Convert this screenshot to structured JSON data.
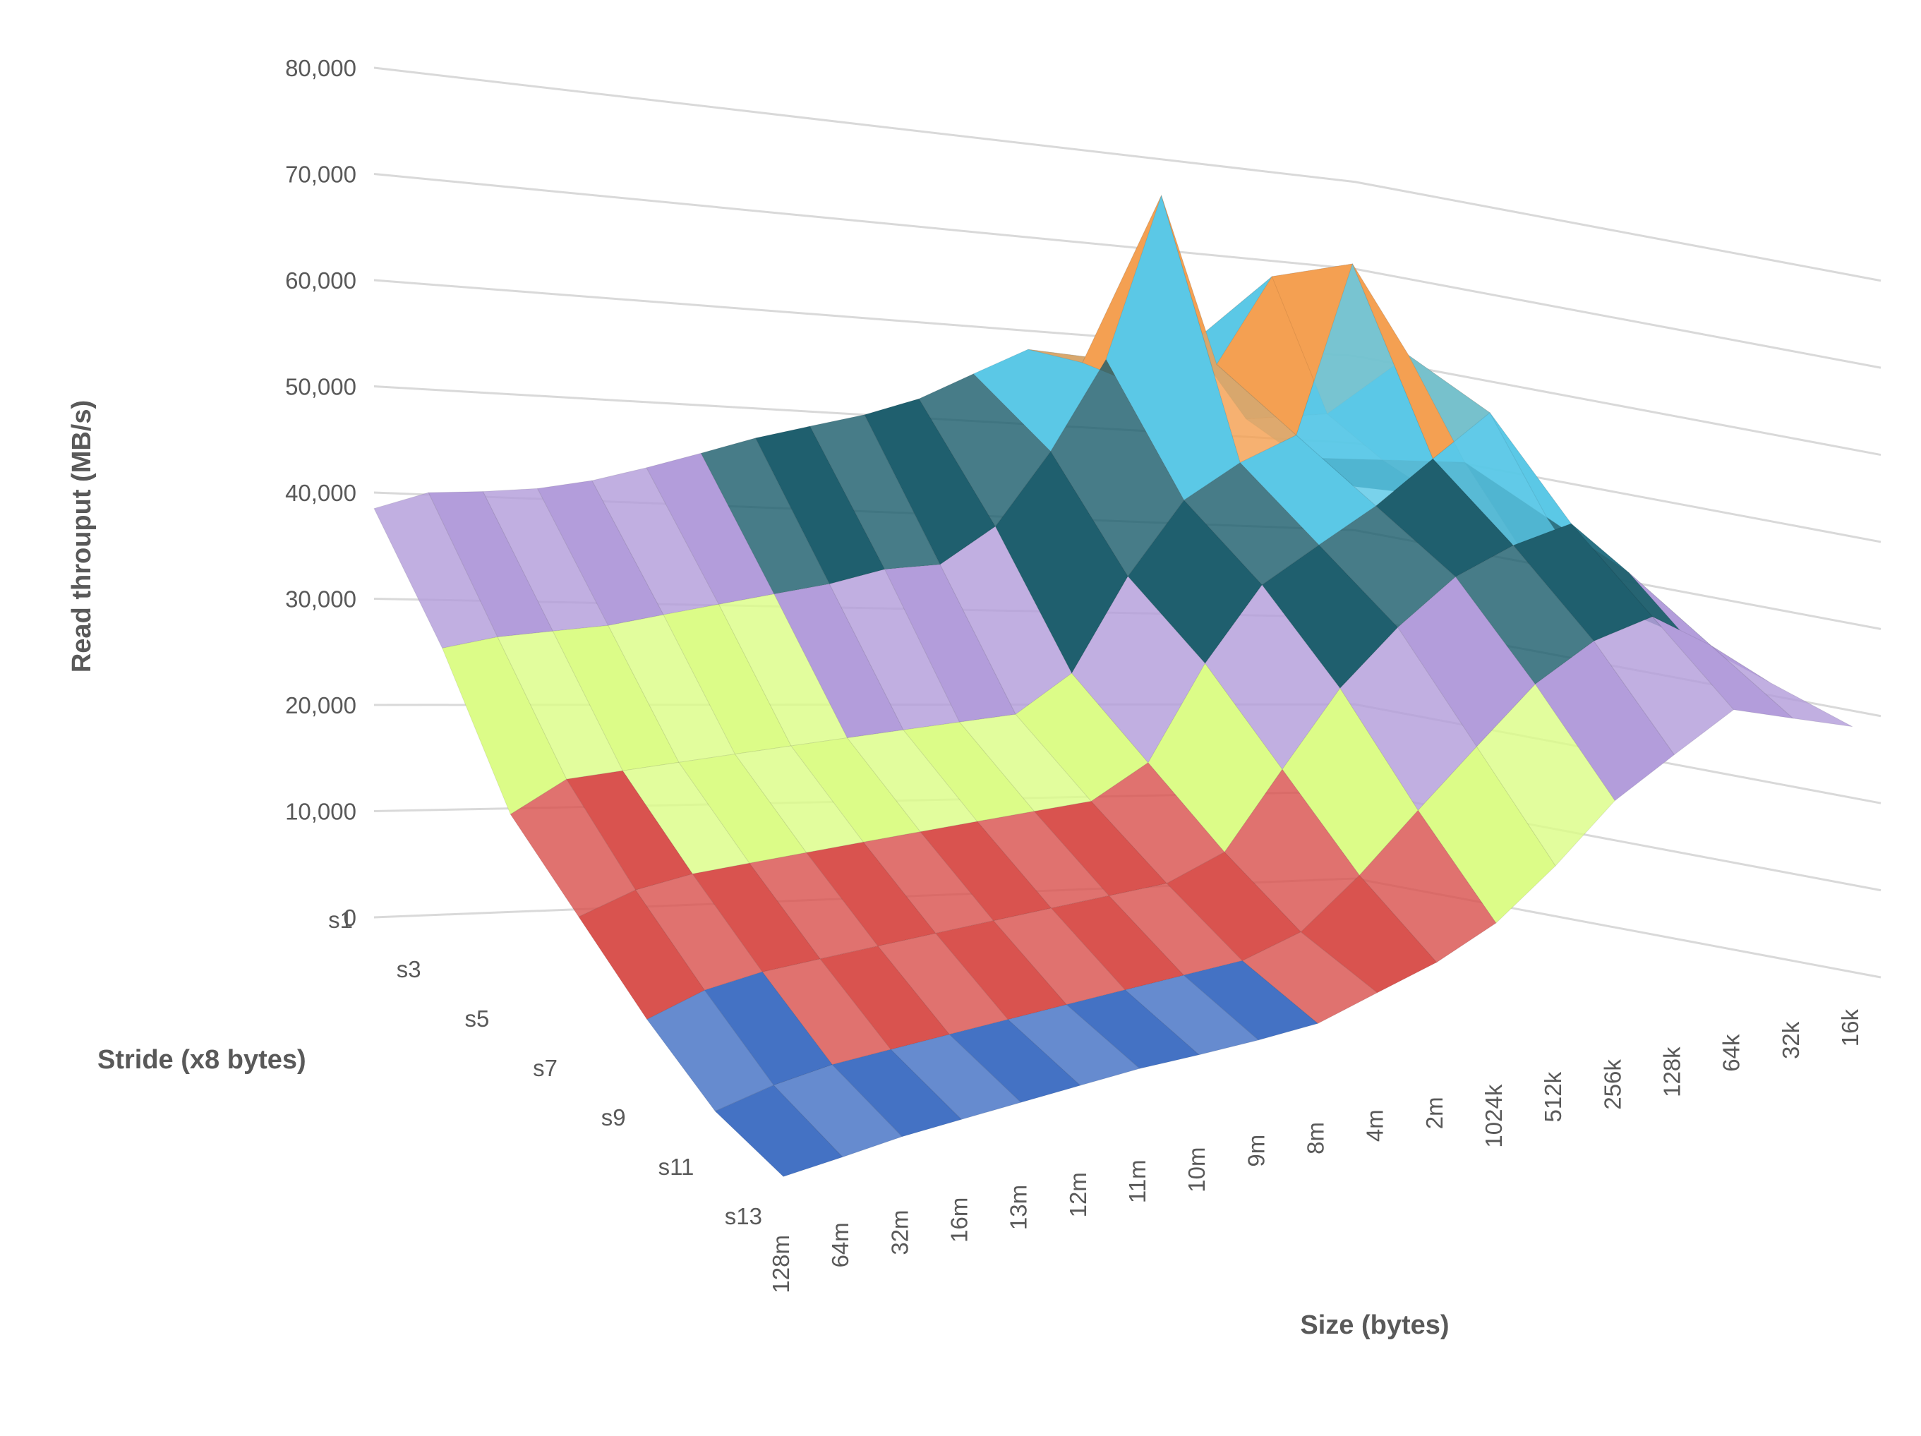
{
  "chart_data": {
    "type": "surface",
    "title": "",
    "zlabel": "Read throuput (MB/s)",
    "ylabel": "Stride (x8 bytes)",
    "xlabel": "Size (bytes)",
    "zlim": [
      0,
      80000
    ],
    "z_ticks": [
      "0",
      "10,000",
      "20,000",
      "30,000",
      "40,000",
      "50,000",
      "60,000",
      "70,000",
      "80,000"
    ],
    "x_categories": [
      "128m",
      "64m",
      "32m",
      "16m",
      "13m",
      "12m",
      "11m",
      "10m",
      "9m",
      "8m",
      "4m",
      "2m",
      "1024k",
      "512k",
      "256k",
      "128k",
      "64k",
      "32k",
      "16k"
    ],
    "y_categories": [
      "s1",
      "s3",
      "s5",
      "s7",
      "s9",
      "s11",
      "s13"
    ],
    "band_interval": 10000,
    "band_colors": [
      "#4472c4",
      "#d9534f",
      "#dcfc88",
      "#b39ddb",
      "#1f5f6e",
      "#5bc8e6",
      "#f4a052",
      "#1a3a5a",
      "#7a1f1f"
    ],
    "grid": true,
    "legend": "none",
    "series": [
      {
        "stride": "s1",
        "values": [
          38500,
          40200,
          40500,
          41000,
          42000,
          43500,
          45200,
          47000,
          48500,
          50000,
          52000,
          55000,
          58000,
          57000,
          55000,
          60000,
          52000,
          48000,
          45000
        ]
      },
      {
        "stride": "s3",
        "values": [
          30000,
          31000,
          31500,
          32000,
          33000,
          34000,
          35000,
          36000,
          37500,
          38000,
          42000,
          50000,
          60000,
          78000,
          60000,
          70000,
          55000,
          50000,
          46000
        ]
      },
      {
        "stride": "s5",
        "values": [
          19000,
          22000,
          22500,
          23000,
          23500,
          24000,
          24500,
          25000,
          25500,
          26000,
          30000,
          40000,
          48000,
          52000,
          55000,
          74000,
          64000,
          52000,
          42000
        ]
      },
      {
        "stride": "s7",
        "values": [
          14000,
          16000,
          17000,
          17500,
          18000,
          18500,
          19000,
          19500,
          20000,
          20500,
          24000,
          34000,
          42000,
          46000,
          50000,
          55000,
          60000,
          48000,
          38000
        ]
      },
      {
        "stride": "s9",
        "values": [
          9000,
          11000,
          12000,
          12500,
          13000,
          13500,
          14000,
          14500,
          15000,
          15500,
          18000,
          26000,
          34000,
          40000,
          45000,
          48000,
          50000,
          44000,
          36000
        ]
      },
      {
        "stride": "s11",
        "values": [
          5000,
          6500,
          7500,
          8000,
          8500,
          9000,
          9500,
          10000,
          10500,
          11000,
          13000,
          18000,
          24000,
          30000,
          36000,
          40000,
          42000,
          38000,
          33000
        ]
      },
      {
        "stride": "s13",
        "values": [
          3500,
          4200,
          5000,
          5500,
          6000,
          6500,
          7000,
          7200,
          7500,
          8000,
          10000,
          12000,
          15000,
          20000,
          26000,
          30000,
          34000,
          32000,
          30000
        ]
      }
    ]
  }
}
